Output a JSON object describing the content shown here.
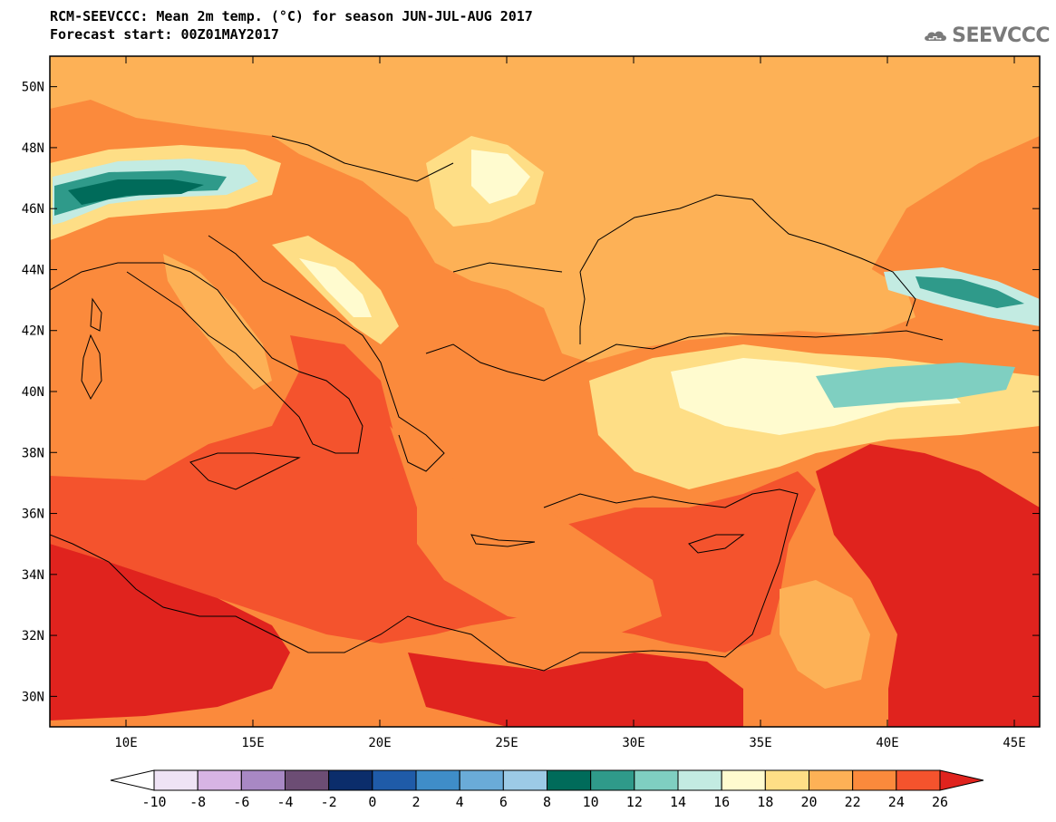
{
  "header": {
    "title_line1": "RCM-SEEVCCC: Mean 2m temp. (°C) for season JUN-JUL-AUG 2017",
    "title_line2": "Forecast start: 00Z01MAY2017"
  },
  "logo": {
    "text": "SEEVCCC",
    "icon": "cloud-icon",
    "color": "#7a7a7a"
  },
  "map": {
    "lon_range": [
      7.0,
      46.0
    ],
    "lat_range": [
      29.0,
      51.0
    ],
    "lon_ticks": [
      "10E",
      "15E",
      "20E",
      "25E",
      "30E",
      "35E",
      "40E",
      "45E"
    ],
    "lon_tick_values": [
      10,
      15,
      20,
      25,
      30,
      35,
      40,
      45
    ],
    "lat_ticks": [
      "30N",
      "32N",
      "34N",
      "36N",
      "38N",
      "40N",
      "42N",
      "44N",
      "46N",
      "48N",
      "50N"
    ],
    "lat_tick_values": [
      30,
      32,
      34,
      36,
      38,
      40,
      42,
      44,
      46,
      48,
      50
    ]
  },
  "colorbar": {
    "labels": [
      "-10",
      "-8",
      "-6",
      "-4",
      "-2",
      "0",
      "2",
      "4",
      "6",
      "8",
      "10",
      "12",
      "14",
      "16",
      "18",
      "20",
      "22",
      "24",
      "26"
    ],
    "low_end_color": "#ffffff",
    "high_end_color": "#e0231e",
    "colors": [
      "#efe3f5",
      "#d7b4e4",
      "#a888c4",
      "#6c4d74",
      "#0b2d6b",
      "#1f5ba8",
      "#3f8dc8",
      "#6aabd8",
      "#9ccae6",
      "#006b5a",
      "#2f9a8a",
      "#7fcfc1",
      "#c3ebe2",
      "#fffbcf",
      "#fede86",
      "#fdb156",
      "#fb8a3c",
      "#f4532d"
    ]
  }
}
